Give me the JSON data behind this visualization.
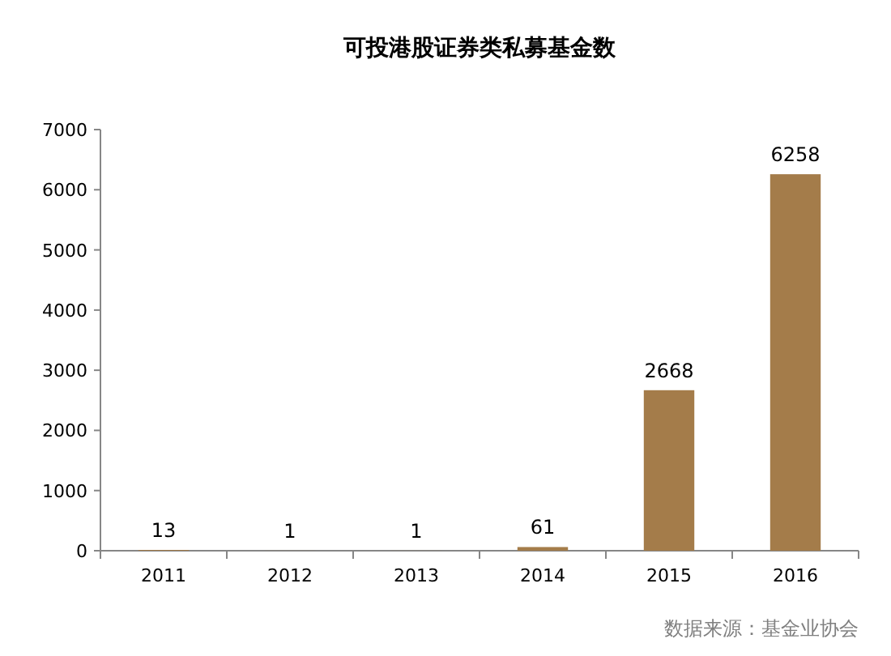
{
  "chart_data": {
    "type": "bar",
    "title": "可投港股证券类私募基金数",
    "categories": [
      "2011",
      "2012",
      "2013",
      "2014",
      "2015",
      "2016"
    ],
    "values": [
      13,
      1,
      1,
      61,
      2668,
      6258
    ],
    "color": "#a47c4a",
    "ylim": [
      0,
      7000
    ],
    "yticks": [
      0,
      1000,
      2000,
      3000,
      4000,
      5000,
      6000,
      7000
    ],
    "data_labels": true,
    "annotations": [
      "数据来源：基金业协会"
    ]
  }
}
